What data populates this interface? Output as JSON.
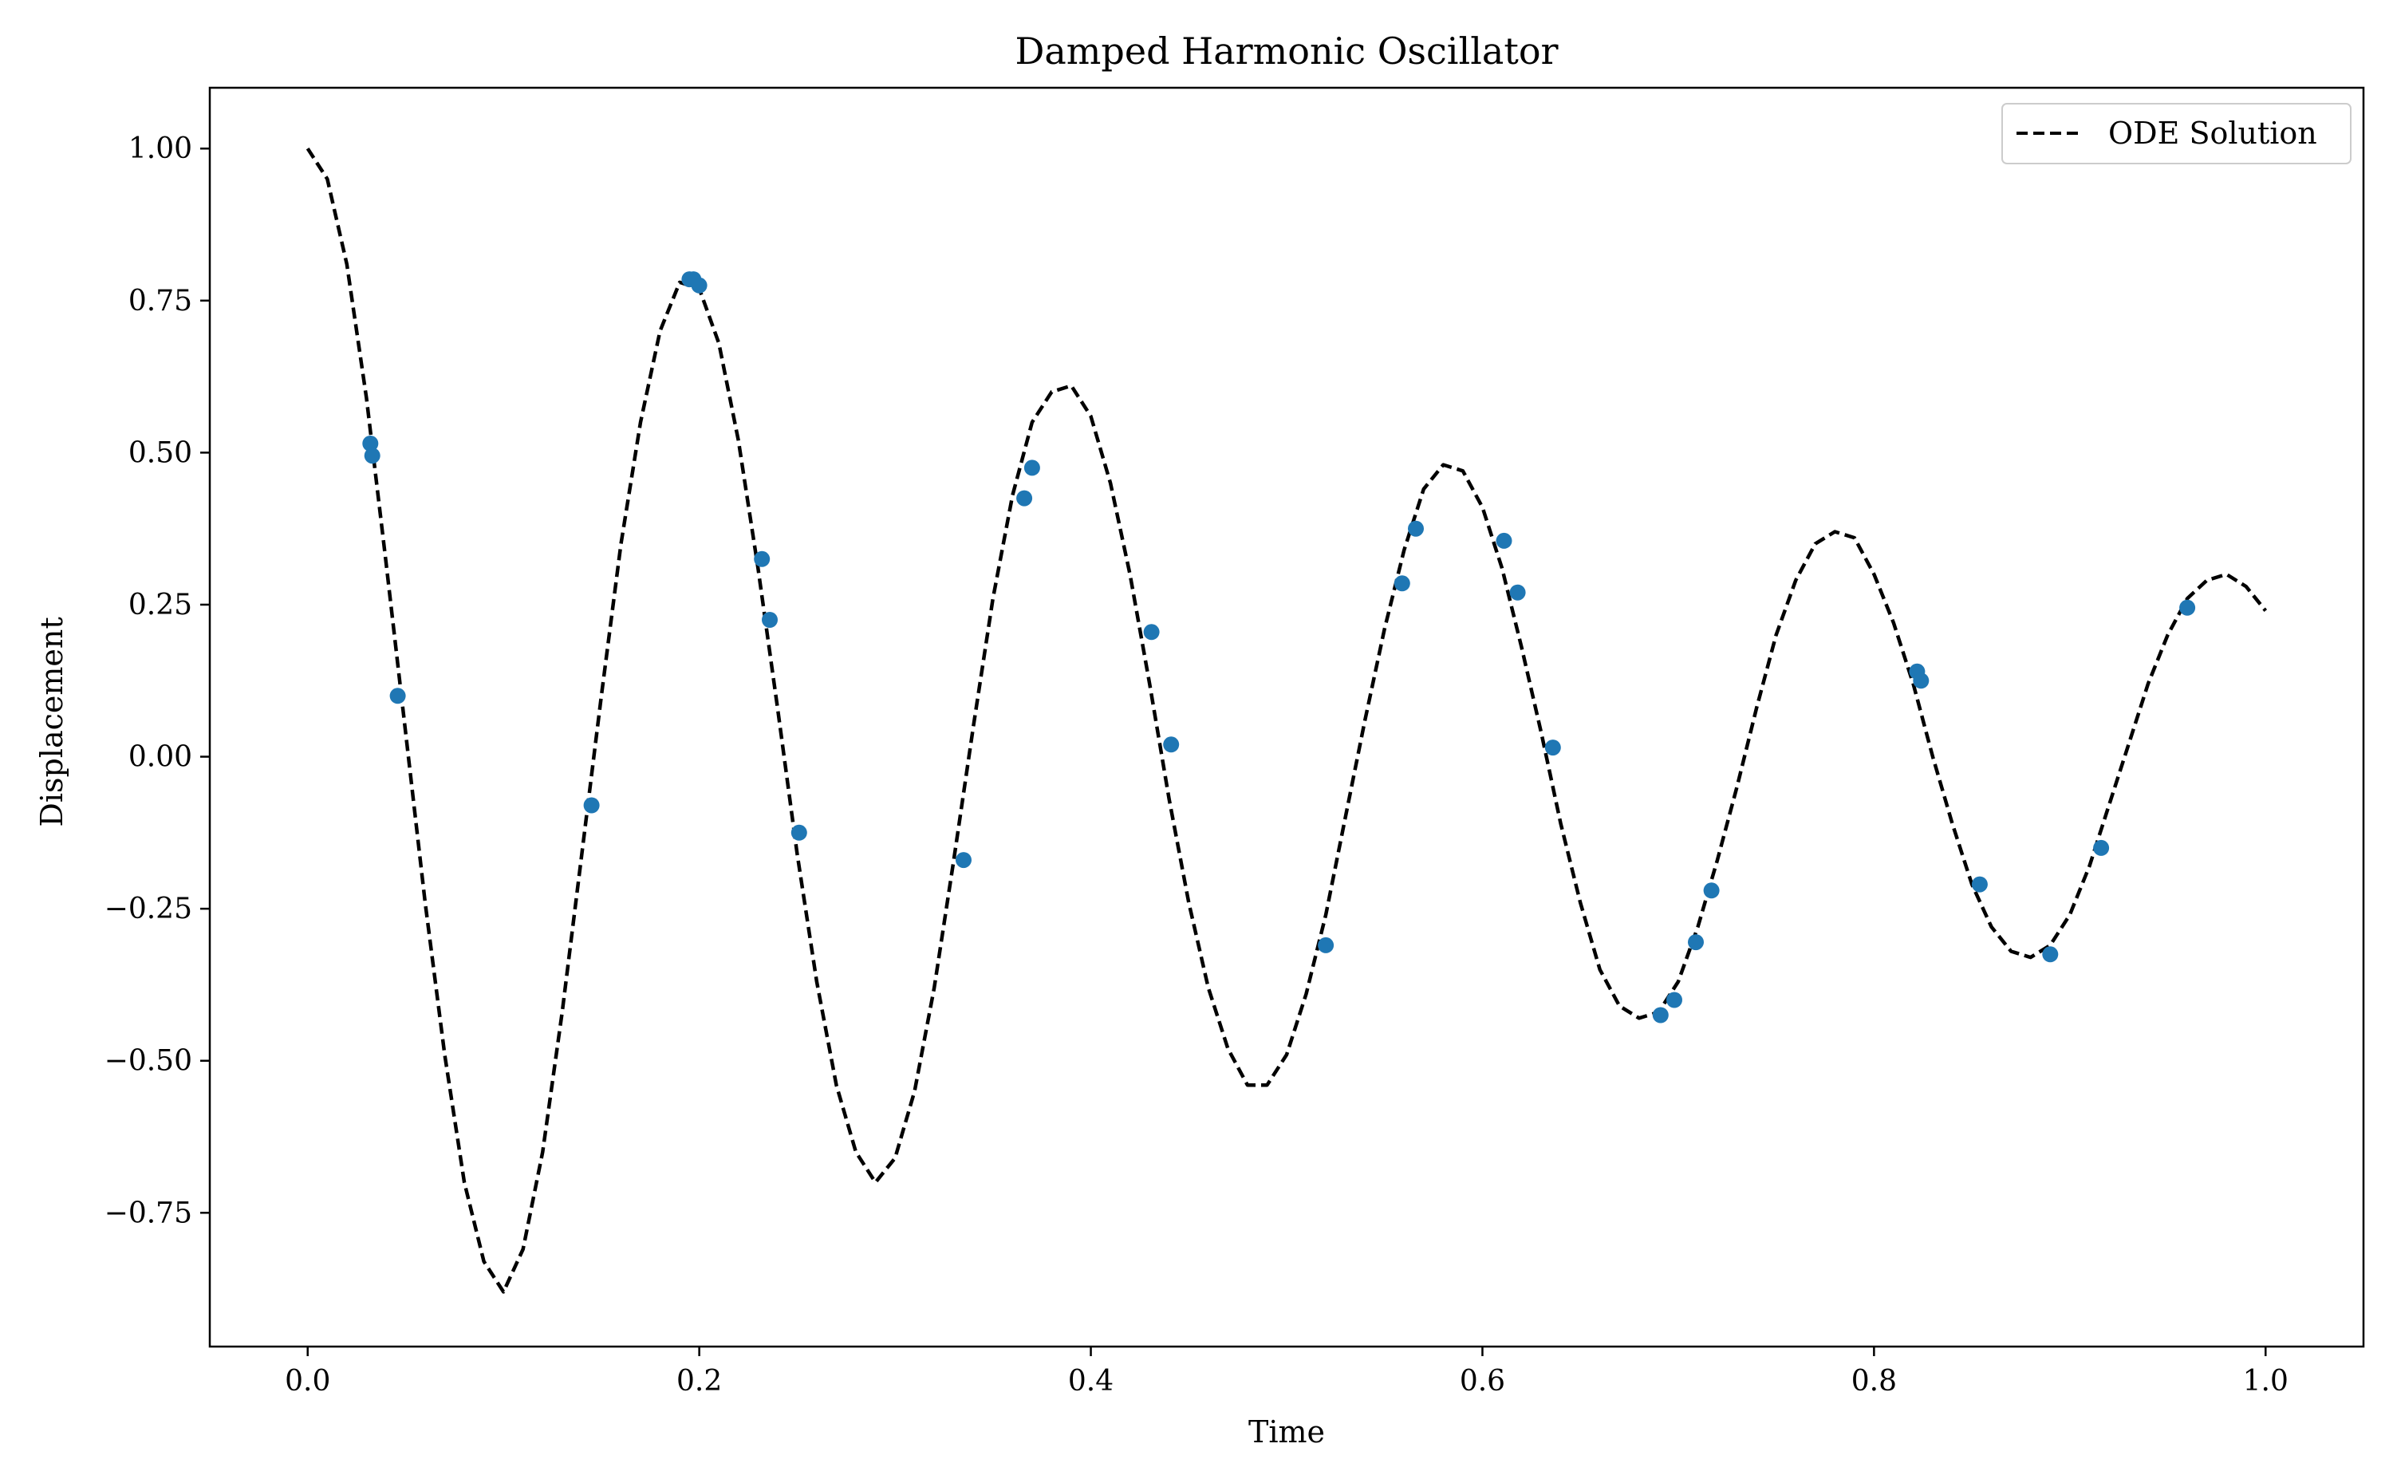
{
  "colors": {
    "line": "#000000",
    "points": "#1f77b4",
    "background": "#ffffff"
  },
  "chart_data": {
    "type": "line",
    "title": "Damped Harmonic Oscillator",
    "xlabel": "Time",
    "ylabel": "Displacement",
    "xlim": [
      -0.05,
      1.05
    ],
    "ylim": [
      -0.97,
      1.1
    ],
    "grid": false,
    "legend_position": "top-right",
    "x_ticks": [
      0.0,
      0.2,
      0.4,
      0.6,
      0.8,
      1.0
    ],
    "x_tick_labels": [
      "0.0",
      "0.2",
      "0.4",
      "0.6",
      "0.8",
      "1.0"
    ],
    "y_ticks": [
      1.0,
      0.75,
      0.5,
      0.25,
      0.0,
      -0.25,
      -0.5,
      -0.75
    ],
    "y_tick_labels": [
      "1.00",
      "0.75",
      "0.50",
      "0.25",
      "0.00",
      "−0.25",
      "−0.50",
      "−0.75"
    ],
    "series": [
      {
        "name": "ODE Solution",
        "style": "dashed",
        "x": [
          0.0,
          0.01,
          0.02,
          0.03,
          0.04,
          0.05,
          0.06,
          0.07,
          0.08,
          0.09,
          0.1,
          0.11,
          0.12,
          0.13,
          0.14,
          0.15,
          0.16,
          0.17,
          0.18,
          0.19,
          0.2,
          0.21,
          0.22,
          0.23,
          0.24,
          0.25,
          0.26,
          0.27,
          0.28,
          0.29,
          0.3,
          0.31,
          0.32,
          0.33,
          0.34,
          0.35,
          0.36,
          0.37,
          0.38,
          0.39,
          0.4,
          0.41,
          0.42,
          0.43,
          0.44,
          0.45,
          0.46,
          0.47,
          0.48,
          0.49,
          0.5,
          0.51,
          0.52,
          0.53,
          0.54,
          0.55,
          0.56,
          0.57,
          0.58,
          0.59,
          0.6,
          0.61,
          0.62,
          0.63,
          0.64,
          0.65,
          0.66,
          0.67,
          0.68,
          0.69,
          0.7,
          0.71,
          0.72,
          0.73,
          0.74,
          0.75,
          0.76,
          0.77,
          0.78,
          0.79,
          0.8,
          0.81,
          0.82,
          0.83,
          0.84,
          0.85,
          0.86,
          0.87,
          0.88,
          0.89,
          0.9,
          0.91,
          0.92,
          0.93,
          0.94,
          0.95,
          0.96,
          0.97,
          0.98,
          0.99,
          1.0
        ],
        "y": [
          1.0,
          0.95,
          0.81,
          0.59,
          0.32,
          0.04,
          -0.24,
          -0.49,
          -0.7,
          -0.83,
          -0.88,
          -0.81,
          -0.65,
          -0.42,
          -0.16,
          0.1,
          0.35,
          0.55,
          0.7,
          0.78,
          0.77,
          0.68,
          0.52,
          0.31,
          0.08,
          -0.16,
          -0.37,
          -0.54,
          -0.65,
          -0.7,
          -0.66,
          -0.55,
          -0.38,
          -0.17,
          0.05,
          0.26,
          0.43,
          0.55,
          0.6,
          0.61,
          0.56,
          0.45,
          0.3,
          0.12,
          -0.07,
          -0.24,
          -0.38,
          -0.48,
          -0.54,
          -0.54,
          -0.49,
          -0.39,
          -0.26,
          -0.1,
          0.06,
          0.21,
          0.34,
          0.44,
          0.48,
          0.47,
          0.41,
          0.31,
          0.18,
          0.04,
          -0.11,
          -0.24,
          -0.35,
          -0.41,
          -0.43,
          -0.42,
          -0.37,
          -0.28,
          -0.17,
          -0.05,
          0.08,
          0.2,
          0.29,
          0.35,
          0.37,
          0.36,
          0.3,
          0.22,
          0.12,
          0.0,
          -0.11,
          -0.21,
          -0.28,
          -0.32,
          -0.33,
          -0.31,
          -0.26,
          -0.18,
          -0.08,
          0.02,
          0.12,
          0.2,
          0.26,
          0.29,
          0.3,
          0.28,
          0.24
        ]
      },
      {
        "type": "scatter",
        "x": [
          0.032,
          0.033,
          0.046,
          0.145,
          0.195,
          0.197,
          0.2,
          0.232,
          0.236,
          0.251,
          0.335,
          0.366,
          0.37,
          0.431,
          0.441,
          0.52,
          0.559,
          0.566,
          0.611,
          0.618,
          0.636,
          0.691,
          0.698,
          0.709,
          0.717,
          0.822,
          0.824,
          0.854,
          0.89,
          0.916,
          0.96
        ],
        "y": [
          0.515,
          0.495,
          0.1,
          -0.08,
          0.785,
          0.785,
          0.775,
          0.325,
          0.225,
          -0.125,
          -0.17,
          0.425,
          0.475,
          0.205,
          0.02,
          -0.31,
          0.285,
          0.375,
          0.355,
          0.27,
          0.015,
          -0.425,
          -0.4,
          -0.305,
          -0.22,
          0.14,
          0.125,
          -0.21,
          -0.325,
          -0.15,
          0.245
        ]
      }
    ]
  }
}
